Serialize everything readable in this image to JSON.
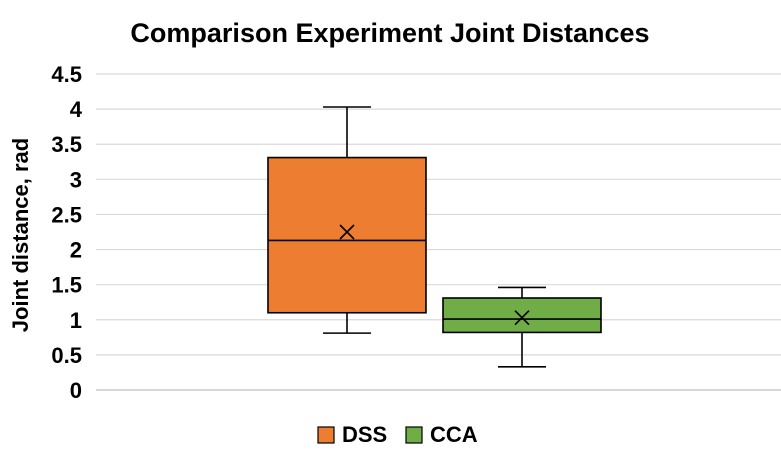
{
  "chart_data": {
    "type": "box",
    "title": "Comparison Experiment Joint Distances",
    "xlabel": "",
    "ylabel": "Joint distance, rad",
    "ylim": [
      0,
      4.5
    ],
    "yticks": [
      "0",
      "0.5",
      "1",
      "1.5",
      "2",
      "2.5",
      "3",
      "3.5",
      "4",
      "4.5"
    ],
    "ytick_values": [
      0,
      0.5,
      1,
      1.5,
      2,
      2.5,
      3,
      3.5,
      4,
      4.5
    ],
    "grid": true,
    "legend_position": "bottom",
    "series": [
      {
        "name": "DSS",
        "color": "#ED7D31",
        "min": 0.81,
        "q1": 1.1,
        "median": 2.13,
        "q3": 3.31,
        "max": 4.03,
        "mean": 2.25
      },
      {
        "name": "CCA",
        "color": "#70AD47",
        "min": 0.33,
        "q1": 0.82,
        "median": 1.01,
        "q3": 1.31,
        "max": 1.46,
        "mean": 1.03
      }
    ]
  }
}
